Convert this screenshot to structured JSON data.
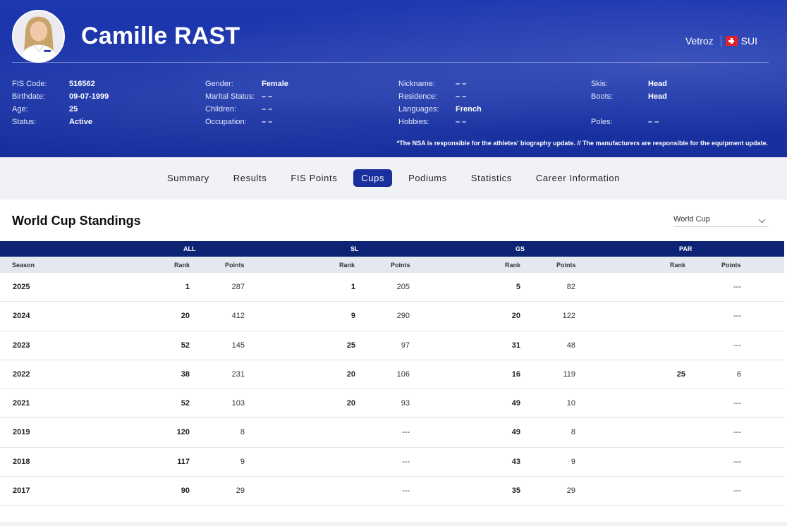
{
  "header": {
    "name": "Camille RAST",
    "location": "Vetroz",
    "nation_code": "SUI",
    "bio": {
      "col1": [
        {
          "label": "FIS Code:",
          "value": "516562"
        },
        {
          "label": "Birthdate:",
          "value": "09-07-1999"
        },
        {
          "label": "Age:",
          "value": "25"
        },
        {
          "label": "Status:",
          "value": "Active"
        }
      ],
      "col2": [
        {
          "label": "Gender:",
          "value": "Female"
        },
        {
          "label": "Marital Status:",
          "value": "– –"
        },
        {
          "label": "Children:",
          "value": "– –"
        },
        {
          "label": "Occupation:",
          "value": "– –"
        }
      ],
      "col3": [
        {
          "label": "Nickname:",
          "value": "– –"
        },
        {
          "label": "Residence:",
          "value": "– –"
        },
        {
          "label": "Languages:",
          "value": "French"
        },
        {
          "label": "Hobbies:",
          "value": "– –"
        }
      ],
      "col4": [
        {
          "label": "Skis:",
          "value": "Head"
        },
        {
          "label": "Boots:",
          "value": "Head"
        },
        {
          "label": "",
          "value": ""
        },
        {
          "label": "Poles:",
          "value": "– –"
        }
      ]
    },
    "disclaimer": "*The NSA is responsible for the athletes' biography update. // The manufacturers are responsible for the equipment update."
  },
  "nav": {
    "tabs": [
      "Summary",
      "Results",
      "FIS Points",
      "Cups",
      "Podiums",
      "Statistics",
      "Career Information"
    ],
    "active": "Cups"
  },
  "standings": {
    "title": "World Cup Standings",
    "cup_selected": "World Cup",
    "groups": [
      "ALL",
      "SL",
      "GS",
      "PAR"
    ],
    "sub_headers": {
      "season": "Season",
      "rank": "Rank",
      "points": "Points"
    },
    "rows": [
      {
        "season": "2025",
        "all_rank": "1",
        "all_pts": "287",
        "sl_rank": "1",
        "sl_pts": "205",
        "gs_rank": "5",
        "gs_pts": "82",
        "par_rank": "",
        "par_pts": "---"
      },
      {
        "season": "2024",
        "all_rank": "20",
        "all_pts": "412",
        "sl_rank": "9",
        "sl_pts": "290",
        "gs_rank": "20",
        "gs_pts": "122",
        "par_rank": "",
        "par_pts": "---"
      },
      {
        "season": "2023",
        "all_rank": "52",
        "all_pts": "145",
        "sl_rank": "25",
        "sl_pts": "97",
        "gs_rank": "31",
        "gs_pts": "48",
        "par_rank": "",
        "par_pts": "---"
      },
      {
        "season": "2022",
        "all_rank": "38",
        "all_pts": "231",
        "sl_rank": "20",
        "sl_pts": "106",
        "gs_rank": "16",
        "gs_pts": "119",
        "par_rank": "25",
        "par_pts": "6"
      },
      {
        "season": "2021",
        "all_rank": "52",
        "all_pts": "103",
        "sl_rank": "20",
        "sl_pts": "93",
        "gs_rank": "49",
        "gs_pts": "10",
        "par_rank": "",
        "par_pts": "---"
      },
      {
        "season": "2019",
        "all_rank": "120",
        "all_pts": "8",
        "sl_rank": "",
        "sl_pts": "---",
        "gs_rank": "49",
        "gs_pts": "8",
        "par_rank": "",
        "par_pts": "---"
      },
      {
        "season": "2018",
        "all_rank": "117",
        "all_pts": "9",
        "sl_rank": "",
        "sl_pts": "---",
        "gs_rank": "43",
        "gs_pts": "9",
        "par_rank": "",
        "par_pts": "---"
      },
      {
        "season": "2017",
        "all_rank": "90",
        "all_pts": "29",
        "sl_rank": "",
        "sl_pts": "---",
        "gs_rank": "35",
        "gs_pts": "29",
        "par_rank": "",
        "par_pts": "---"
      }
    ]
  },
  "colors": {
    "header_blue": "#1a33a5",
    "table_head": "#0d2475",
    "active_tab": "#1a2e9c",
    "flag_red": "#e4202a"
  }
}
